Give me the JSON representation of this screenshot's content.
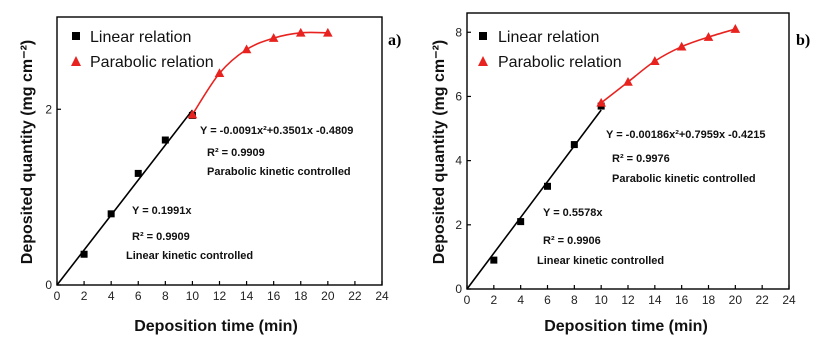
{
  "chart_data": [
    {
      "type": "scatter",
      "panel_label": "a)",
      "xlabel": "Deposition time (min)",
      "ylabel": "Deposited quantity (mg cm⁻²)",
      "xlim": [
        0,
        24
      ],
      "ylim": [
        0,
        3.05
      ],
      "xticks": [
        0,
        2,
        4,
        6,
        8,
        10,
        12,
        14,
        16,
        18,
        20,
        22,
        24
      ],
      "yticks": [
        0,
        2
      ],
      "legend_position": "top-left",
      "series": [
        {
          "name": "Linear relation",
          "marker": "square",
          "color": "#000000",
          "x": [
            2,
            4,
            6,
            8,
            10
          ],
          "y": [
            0.35,
            0.81,
            1.27,
            1.65,
            1.93
          ]
        },
        {
          "name": "Parabolic relation",
          "marker": "triangle",
          "color": "#e8231f",
          "x": [
            10,
            12,
            14,
            16,
            18,
            20
          ],
          "y": [
            1.94,
            2.41,
            2.68,
            2.81,
            2.87,
            2.87
          ]
        }
      ],
      "fit_lines": [
        {
          "kind": "linear",
          "color": "#000000",
          "x_range": [
            0,
            10
          ],
          "slope": 0.1991
        },
        {
          "kind": "quadratic",
          "color": "#e8231f",
          "x_range": [
            10,
            20
          ],
          "a": -0.0091,
          "b": 0.3501,
          "c": -0.4809
        }
      ],
      "annotations": {
        "parabolic_eq": "Y = -0.0091x²+0.3501x -0.4809",
        "parabolic_r2": "R² = 0.9909",
        "parabolic_desc": "Parabolic kinetic  controlled",
        "linear_eq": "Y = 0.1991x",
        "linear_r2": "R² = 0.9909",
        "linear_desc": "Linear kinetic controlled"
      }
    },
    {
      "type": "scatter",
      "panel_label": "b)",
      "xlabel": "Deposition time (min)",
      "ylabel": "Deposited quantity (mg cm⁻²)",
      "xlim": [
        0,
        24
      ],
      "ylim": [
        0,
        8.6
      ],
      "xticks": [
        0,
        2,
        4,
        6,
        8,
        10,
        12,
        14,
        16,
        18,
        20,
        22,
        24
      ],
      "yticks": [
        0,
        2,
        4,
        6,
        8
      ],
      "legend_position": "top-left",
      "series": [
        {
          "name": "Linear relation",
          "marker": "square",
          "color": "#000000",
          "x": [
            2,
            4,
            6,
            8,
            10
          ],
          "y": [
            0.9,
            2.1,
            3.2,
            4.5,
            5.7
          ]
        },
        {
          "name": "Parabolic relation",
          "marker": "triangle",
          "color": "#e8231f",
          "x": [
            10,
            12,
            14,
            16,
            18,
            20
          ],
          "y": [
            5.8,
            6.45,
            7.1,
            7.55,
            7.85,
            8.1
          ]
        }
      ],
      "fit_lines": [
        {
          "kind": "linear",
          "color": "#000000",
          "x_range": [
            0,
            10
          ],
          "slope": 0.5578
        },
        {
          "kind": "quadratic",
          "color": "#e8231f",
          "x_range": [
            10,
            20
          ],
          "a": -0.00186,
          "b": 0.7959,
          "c": -0.4215
        }
      ],
      "annotations": {
        "parabolic_eq": "Y = -0.00186x²+0.7959x -0.4215",
        "parabolic_r2": "R² = 0.9976",
        "parabolic_desc": "Parabolic kinetic  controlled",
        "linear_eq": "Y = 0.5578x",
        "linear_r2": "R² = 0.9906",
        "linear_desc": "Linear kinetic controlled"
      }
    }
  ]
}
